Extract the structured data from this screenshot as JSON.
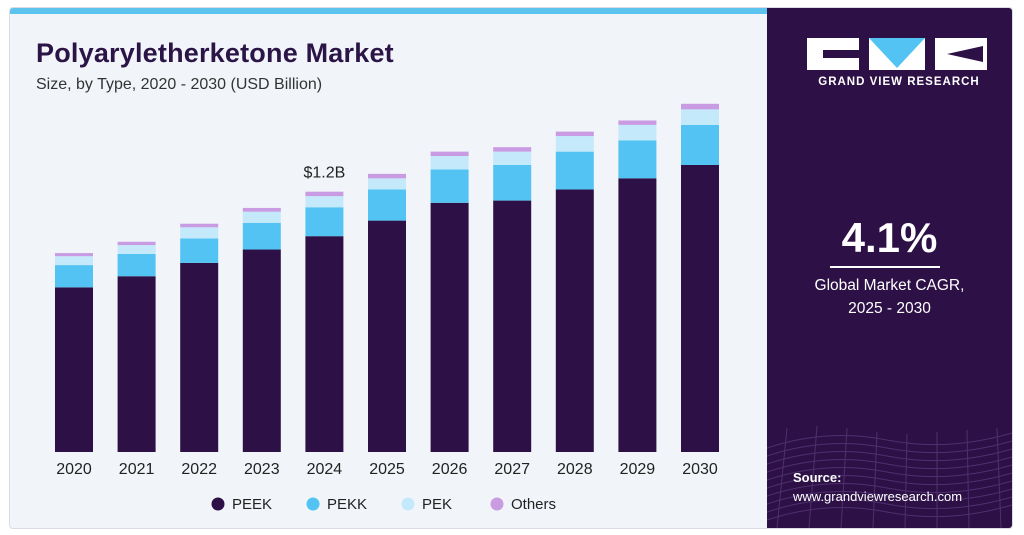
{
  "header": {
    "title": "Polyaryletherketone Market",
    "subtitle": "Size, by Type, 2020 - 2030 (USD Billion)"
  },
  "sidebar": {
    "brand": "GRAND VIEW RESEARCH",
    "cagr_value": "4.1%",
    "cagr_label_line1": "Global Market CAGR,",
    "cagr_label_line2": "2025 - 2030",
    "source_title": "Source:",
    "source_url": "www.grandviewresearch.com"
  },
  "colors": {
    "PEEK": "#2d1146",
    "PEKK": "#52c3f2",
    "PEK": "#c3e9fb",
    "Others": "#c99be3",
    "sidebar_bg": "#2d1146",
    "accent": "#5bc3ee"
  },
  "chart_data": {
    "type": "bar",
    "stacked": true,
    "categories": [
      "2020",
      "2021",
      "2022",
      "2023",
      "2024",
      "2025",
      "2026",
      "2027",
      "2028",
      "2029",
      "2030"
    ],
    "series": [
      {
        "name": "PEEK",
        "values": [
          0.74,
          0.79,
          0.85,
          0.91,
          0.97,
          1.04,
          1.12,
          1.13,
          1.18,
          1.23,
          1.29
        ]
      },
      {
        "name": "PEKK",
        "values": [
          0.1,
          0.1,
          0.11,
          0.12,
          0.13,
          0.14,
          0.15,
          0.16,
          0.17,
          0.17,
          0.18
        ]
      },
      {
        "name": "PEK",
        "values": [
          0.04,
          0.04,
          0.05,
          0.05,
          0.05,
          0.05,
          0.06,
          0.06,
          0.07,
          0.07,
          0.07
        ]
      },
      {
        "name": "Others",
        "values": [
          0.014,
          0.015,
          0.016,
          0.017,
          0.02,
          0.02,
          0.02,
          0.02,
          0.02,
          0.02,
          0.025
        ]
      }
    ],
    "annotations": [
      {
        "category": "2024",
        "text": "$1.2B"
      }
    ],
    "ylim": [
      0,
      1.6
    ],
    "legend": "bottom",
    "grid": false
  }
}
